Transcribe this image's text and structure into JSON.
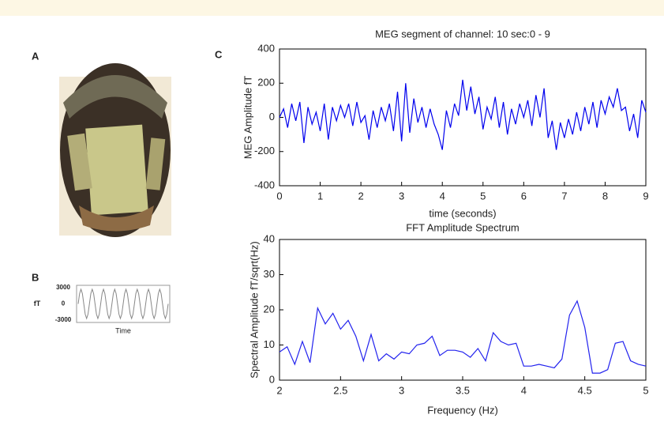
{
  "panel_labels": [
    "A",
    "B",
    "C"
  ],
  "chart_data": [
    {
      "type": "line",
      "ylabel": "fT",
      "xlabel": "Time",
      "ylim": [
        -3000,
        3000
      ],
      "yticks": [
        3000,
        0,
        -3000
      ],
      "series": [
        {
          "color": "#888888",
          "values": [
            0,
            1900,
            2700,
            1900,
            0,
            -1900,
            -2700,
            -1900,
            0,
            1900,
            2700,
            1900,
            0,
            -1900,
            -2700,
            -1900,
            0,
            1900,
            2700,
            1900,
            0,
            -1900,
            -2700,
            -1900,
            0,
            1900,
            2700,
            1900,
            0,
            -1900,
            -2700,
            -1900,
            0,
            1900,
            2700,
            1900,
            0,
            -1900,
            -2700,
            -1900,
            0,
            1900,
            2700,
            1900,
            0,
            -1900,
            -2700,
            -1900,
            0,
            1900,
            2700,
            1900,
            0,
            -1900,
            -2700,
            -1900,
            0,
            1900,
            2700,
            1900,
            0,
            -1900,
            -2700,
            -1900,
            0
          ]
        }
      ]
    },
    {
      "type": "line",
      "title": "MEG segment of channel: 10   sec:0 - 9",
      "xlabel": "time (seconds)",
      "ylabel": "MEG  Amplitude fT",
      "xlim": [
        0,
        9
      ],
      "xticks": [
        0,
        1,
        2,
        3,
        4,
        5,
        6,
        7,
        8,
        9
      ],
      "ylim": [
        -400,
        400
      ],
      "yticks": [
        -400,
        -200,
        0,
        200,
        400
      ],
      "x": [
        0,
        0.1,
        0.2,
        0.3,
        0.4,
        0.5,
        0.6,
        0.7,
        0.8,
        0.9,
        1,
        1.1,
        1.2,
        1.3,
        1.4,
        1.5,
        1.6,
        1.7,
        1.8,
        1.9,
        2,
        2.1,
        2.2,
        2.3,
        2.4,
        2.5,
        2.6,
        2.7,
        2.8,
        2.9,
        3,
        3.1,
        3.2,
        3.3,
        3.4,
        3.5,
        3.6,
        3.7,
        3.8,
        3.9,
        4,
        4.1,
        4.2,
        4.3,
        4.4,
        4.5,
        4.6,
        4.7,
        4.8,
        4.9,
        5,
        5.1,
        5.2,
        5.3,
        5.4,
        5.5,
        5.6,
        5.7,
        5.8,
        5.9,
        6,
        6.1,
        6.2,
        6.3,
        6.4,
        6.5,
        6.6,
        6.7,
        6.8,
        6.9,
        7,
        7.1,
        7.2,
        7.3,
        7.4,
        7.5,
        7.6,
        7.7,
        7.8,
        7.9,
        8,
        8.1,
        8.2,
        8.3,
        8.4,
        8.5,
        8.6,
        8.7,
        8.8,
        8.9,
        9
      ],
      "series": [
        {
          "color": "#0000ee",
          "values": [
            0,
            50,
            -60,
            80,
            -20,
            90,
            -150,
            60,
            -40,
            30,
            -80,
            80,
            -130,
            60,
            -20,
            70,
            0,
            80,
            -50,
            90,
            -30,
            10,
            -130,
            40,
            -60,
            60,
            -20,
            80,
            -80,
            150,
            -140,
            200,
            -90,
            110,
            -30,
            60,
            -60,
            50,
            -40,
            -100,
            -190,
            40,
            -60,
            80,
            10,
            220,
            40,
            180,
            20,
            120,
            -70,
            60,
            -10,
            120,
            -60,
            90,
            -100,
            50,
            -40,
            80,
            0,
            100,
            -50,
            130,
            0,
            170,
            -120,
            -20,
            -190,
            -30,
            -120,
            -10,
            -100,
            30,
            -80,
            60,
            -40,
            90,
            -60,
            100,
            20,
            120,
            60,
            170,
            40,
            60,
            -80,
            20,
            -120,
            100,
            30
          ]
        }
      ]
    },
    {
      "type": "line",
      "title": "FFT Amplitude Spectrum",
      "xlabel": "Frequency (Hz)",
      "ylabel": "Spectral  Amplitude fT/sqrt(Hz)",
      "xlim": [
        2,
        5
      ],
      "xticks": [
        2,
        2.5,
        3,
        3.5,
        4,
        4.5,
        5
      ],
      "ylim": [
        0,
        40
      ],
      "yticks": [
        0,
        10,
        20,
        30,
        40
      ],
      "x": [
        2,
        2.0625,
        2.125,
        2.1875,
        2.25,
        2.3125,
        2.375,
        2.4375,
        2.5,
        2.5625,
        2.625,
        2.6875,
        2.75,
        2.8125,
        2.875,
        2.9375,
        3,
        3.0625,
        3.125,
        3.1875,
        3.25,
        3.3125,
        3.375,
        3.4375,
        3.5,
        3.5625,
        3.625,
        3.6875,
        3.75,
        3.8125,
        3.875,
        3.9375,
        4,
        4.0625,
        4.125,
        4.1875,
        4.25,
        4.3125,
        4.375,
        4.4375,
        4.5,
        4.5625,
        4.625,
        4.6875,
        4.75,
        4.8125,
        4.875,
        4.9375,
        5
      ],
      "series": [
        {
          "color": "#2222ee",
          "values": [
            8,
            9.5,
            4.5,
            11,
            5,
            20.5,
            16,
            19,
            14.5,
            17,
            12.5,
            5.5,
            13,
            5.5,
            7.5,
            6,
            8,
            7.5,
            10,
            10.5,
            12.5,
            7,
            8.5,
            8.5,
            8,
            6.5,
            9,
            5.5,
            13.5,
            11,
            10,
            10.5,
            4,
            4,
            4.5,
            4,
            3.5,
            6,
            18.5,
            22.5,
            15,
            2,
            2,
            3,
            10.5,
            11,
            5.5,
            4.5,
            4
          ]
        }
      ]
    }
  ]
}
